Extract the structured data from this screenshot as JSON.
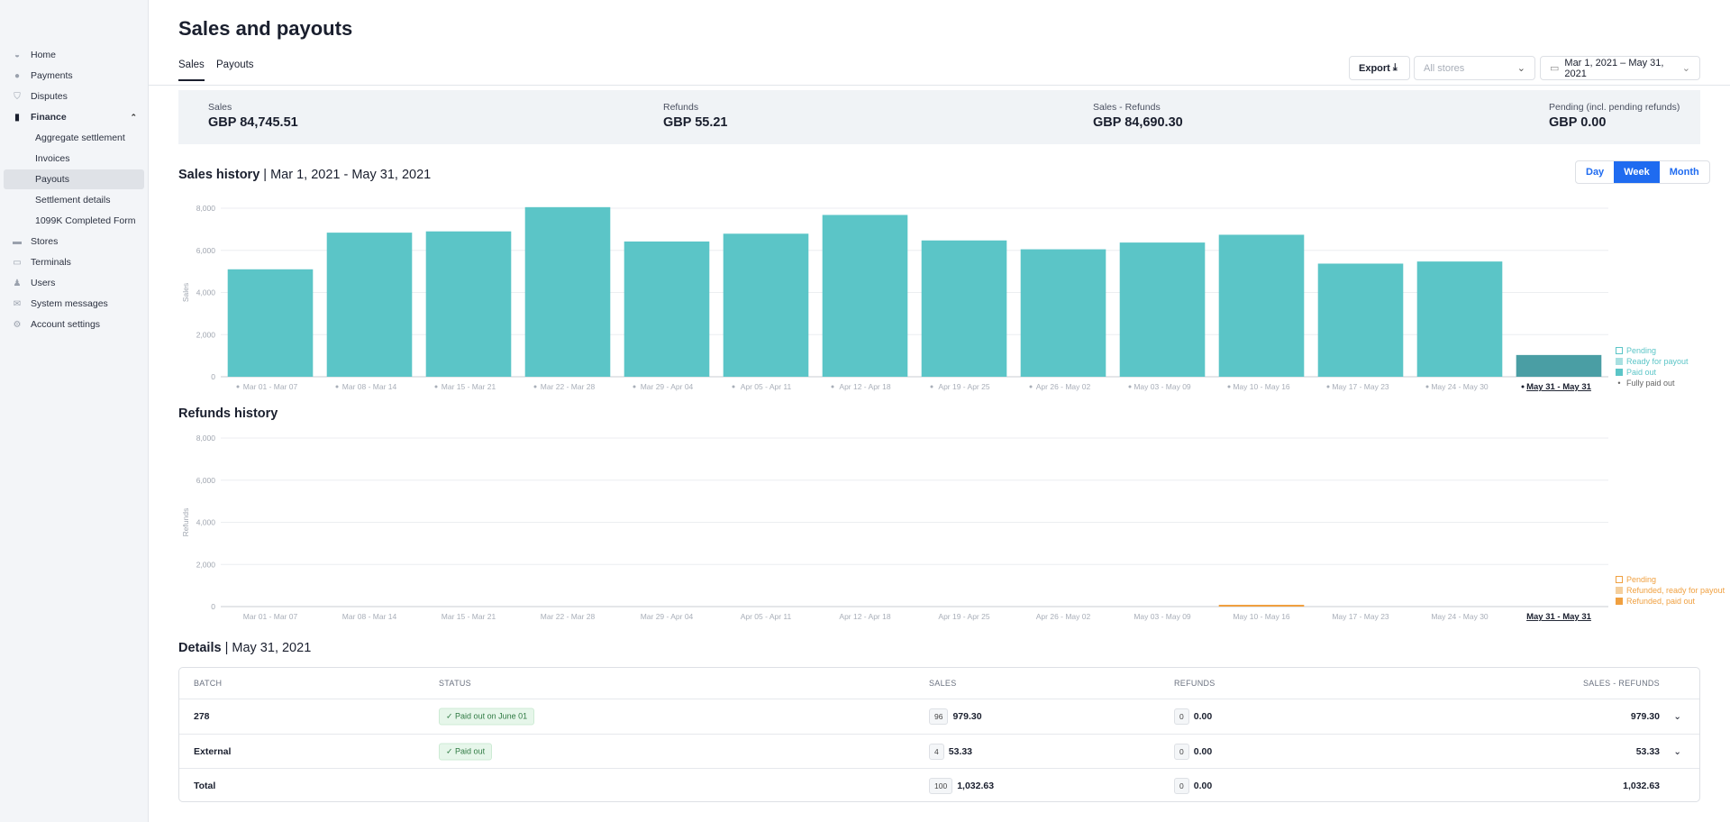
{
  "sidebar": {
    "items": [
      {
        "label": "Home",
        "icon": "home-icon",
        "glyph": "◒"
      },
      {
        "label": "Payments",
        "icon": "payments-icon",
        "glyph": "●"
      },
      {
        "label": "Disputes",
        "icon": "shield-icon",
        "glyph": "⛉"
      },
      {
        "label": "Finance",
        "icon": "bar-chart-icon",
        "glyph": "▮",
        "expanded": true
      },
      {
        "label": "Aggregate settlement"
      },
      {
        "label": "Invoices"
      },
      {
        "label": "Payouts",
        "active": true
      },
      {
        "label": "Settlement details"
      },
      {
        "label": "1099K Completed Form"
      },
      {
        "label": "Stores",
        "icon": "store-icon",
        "glyph": "▬"
      },
      {
        "label": "Terminals",
        "icon": "terminal-icon",
        "glyph": "▭"
      },
      {
        "label": "Users",
        "icon": "users-icon",
        "glyph": "♟"
      },
      {
        "label": "System messages",
        "icon": "mail-icon",
        "glyph": "✉"
      },
      {
        "label": "Account settings",
        "icon": "gear-icon",
        "glyph": "⚙"
      }
    ]
  },
  "header": {
    "title": "Sales and payouts",
    "tabs": [
      "Sales",
      "Payouts"
    ],
    "export_label": "Export",
    "stores_placeholder": "All stores",
    "date_range": "Mar 1, 2021 – May 31, 2021"
  },
  "summary": [
    {
      "label": "Sales",
      "value": "GBP 84,745.51"
    },
    {
      "label": "Refunds",
      "value": "GBP 55.21"
    },
    {
      "label": "Sales - Refunds",
      "value": "GBP 84,690.30"
    },
    {
      "label": "Pending (incl. pending refunds)",
      "value": "GBP 0.00"
    }
  ],
  "sales_history": {
    "title": "Sales history",
    "range": "Mar 1, 2021 - May 31, 2021",
    "granularity": [
      "Day",
      "Week",
      "Month"
    ],
    "selected": "Week"
  },
  "refunds_history": {
    "title": "Refunds history"
  },
  "chart_data": [
    {
      "type": "bar",
      "title": "Sales history",
      "ylabel": "Sales",
      "ylim": [
        0,
        8000
      ],
      "yticks": [
        "0",
        "2,000",
        "4,000",
        "6,000",
        "8,000"
      ],
      "categories": [
        "Mar 01 - Mar 07",
        "Mar 08 - Mar 14",
        "Mar 15 - Mar 21",
        "Mar 22 - Mar 28",
        "Mar 29 - Apr 04",
        "Apr 05 - Apr 11",
        "Apr 12 - Apr 18",
        "Apr 19 - Apr 25",
        "Apr 26 - May 02",
        "May 03 - May 09",
        "May 10 - May 16",
        "May 17 - May 23",
        "May 24 - May 30",
        "May 31 - May 31"
      ],
      "values": [
        5100,
        6840,
        6900,
        8050,
        6420,
        6790,
        7680,
        6470,
        6050,
        6370,
        6740,
        5370,
        5470,
        1032.63
      ],
      "selected": "May 31 - May 31",
      "legend": [
        "Pending",
        "Ready for payout",
        "Paid out",
        "Fully paid out"
      ],
      "colors": {
        "paid": "#5bc5c7",
        "selected": "#4a9ea4"
      }
    },
    {
      "type": "bar",
      "title": "Refunds history",
      "ylabel": "Refunds",
      "ylim": [
        0,
        8000
      ],
      "yticks": [
        "0",
        "2,000",
        "4,000",
        "6,000",
        "8,000"
      ],
      "categories": [
        "Mar 01 - Mar 07",
        "Mar 08 - Mar 14",
        "Mar 15 - Mar 21",
        "Mar 22 - Mar 28",
        "Mar 29 - Apr 04",
        "Apr 05 - Apr 11",
        "Apr 12 - Apr 18",
        "Apr 19 - Apr 25",
        "Apr 26 - May 02",
        "May 03 - May 09",
        "May 10 - May 16",
        "May 17 - May 23",
        "May 24 - May 30",
        "May 31 - May 31"
      ],
      "values": [
        0,
        0,
        0,
        0,
        0,
        0,
        0,
        0,
        0,
        0,
        55.21,
        0,
        0,
        0
      ],
      "selected": "May 31 - May 31",
      "legend": [
        "Pending",
        "Refunded, ready for payout",
        "Refunded, paid out"
      ],
      "colors": {
        "paid": "#f0a040"
      }
    }
  ],
  "details": {
    "title": "Details",
    "date": "May 31, 2021",
    "columns": [
      "BATCH",
      "STATUS",
      "SALES",
      "REFUNDS",
      "SALES - REFUNDS"
    ],
    "rows": [
      {
        "batch": "278",
        "status": "Paid out on June 01",
        "sales_count": "96",
        "sales": "979.30",
        "refunds_count": "0",
        "refunds": "0.00",
        "net": "979.30"
      },
      {
        "batch": "External",
        "status": "Paid out",
        "sales_count": "4",
        "sales": "53.33",
        "refunds_count": "0",
        "refunds": "0.00",
        "net": "53.33"
      }
    ],
    "total": {
      "label": "Total",
      "sales_count": "100",
      "sales": "1,032.63",
      "refunds_count": "0",
      "refunds": "0.00",
      "net": "1,032.63"
    }
  }
}
